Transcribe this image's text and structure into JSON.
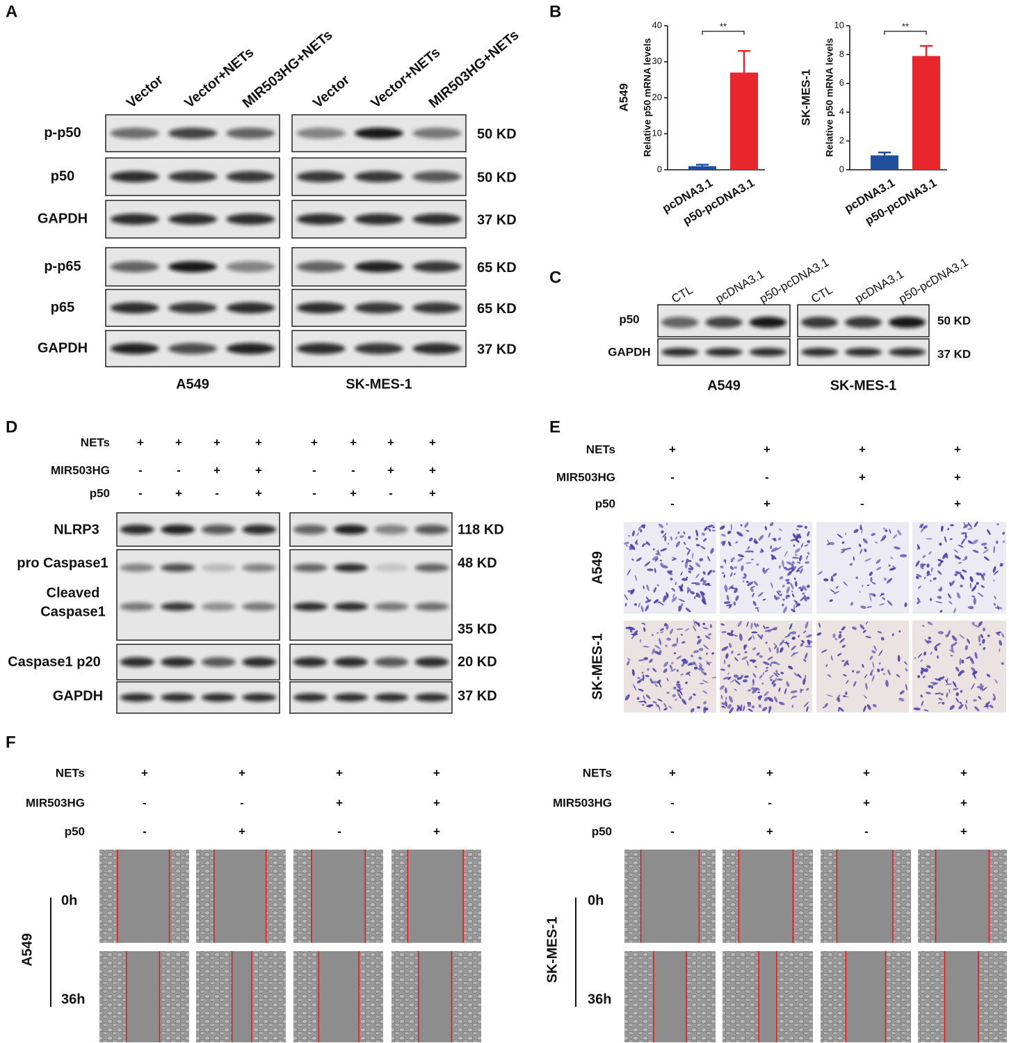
{
  "panel_labels": [
    "A",
    "B",
    "C",
    "D",
    "E",
    "F"
  ],
  "panel_a": {
    "lanes": [
      "Vector",
      "Vector+NETs",
      "MIR503HG+NETs"
    ],
    "rows": [
      {
        "label": "p-p50",
        "size": "50 KD"
      },
      {
        "label": "p50",
        "size": "50 KD"
      },
      {
        "label": "GAPDH",
        "size": "37 KD"
      },
      {
        "label": "p-p65",
        "size": "65 KD"
      },
      {
        "label": "p65",
        "size": "65 KD"
      },
      {
        "label": "GAPDH",
        "size": "37 KD"
      }
    ],
    "cell_lines": [
      "A549",
      "SK-MES-1"
    ]
  },
  "chart_data": [
    {
      "type": "bar",
      "title": "A549",
      "y_label": "Relative p50 mRNA levels",
      "categories": [
        "pcDNA3.1",
        "p50-pcDNA3.1"
      ],
      "values": [
        1,
        27
      ],
      "errors": [
        0.4,
        6
      ],
      "colors": [
        "#1f4e9c",
        "#e8262b"
      ],
      "ylim": [
        0,
        40
      ],
      "yticks": [
        0,
        10,
        20,
        30,
        40
      ],
      "significance": "**"
    },
    {
      "type": "bar",
      "title": "SK-MES-1",
      "y_label": "Relative p50 mRNA levels",
      "categories": [
        "pcDNA3.1",
        "p50-pcDNA3.1"
      ],
      "values": [
        1,
        7.9
      ],
      "errors": [
        0.2,
        0.7
      ],
      "colors": [
        "#1f4e9c",
        "#e8262b"
      ],
      "ylim": [
        0,
        10
      ],
      "yticks": [
        0,
        2,
        4,
        6,
        8,
        10
      ],
      "significance": "**"
    }
  ],
  "panel_c": {
    "lanes": [
      "CTL",
      "pcDNA3.1",
      "p50-pcDNA3.1"
    ],
    "rows": [
      {
        "label": "p50",
        "size": "50 KD"
      },
      {
        "label": "GAPDH",
        "size": "37 KD"
      }
    ],
    "cell_lines": [
      "A549",
      "SK-MES-1"
    ]
  },
  "panel_d": {
    "conditions": [
      {
        "label": "NETs",
        "signs": [
          "+",
          "+",
          "+",
          "+",
          "+",
          "+",
          "+",
          "+"
        ]
      },
      {
        "label": "MIR503HG",
        "signs": [
          "-",
          "-",
          "+",
          "+",
          "-",
          "-",
          "+",
          "+"
        ]
      },
      {
        "label": "p50",
        "signs": [
          "-",
          "+",
          "-",
          "+",
          "-",
          "+",
          "-",
          "+"
        ]
      }
    ],
    "row_labels": [
      "NLRP3",
      "pro Caspase1",
      "Cleaved",
      "Caspase1",
      "Caspase1 p20",
      "GAPDH"
    ],
    "sizes": [
      "118 KD",
      "48 KD",
      "35 KD",
      "20 KD",
      "37 KD"
    ]
  },
  "panel_e": {
    "conditions": [
      {
        "label": "NETs",
        "signs": [
          "+",
          "+",
          "+",
          "+"
        ]
      },
      {
        "label": "MIR503HG",
        "signs": [
          "-",
          "-",
          "+",
          "+"
        ]
      },
      {
        "label": "p50",
        "signs": [
          "-",
          "+",
          "-",
          "+"
        ]
      }
    ],
    "row_labels": [
      "A549",
      "SK-MES-1"
    ]
  },
  "panel_f": {
    "left": {
      "conditions": [
        {
          "label": "NETs",
          "signs": [
            "+",
            "+",
            "+",
            "+"
          ]
        },
        {
          "label": "MIR503HG",
          "signs": [
            "-",
            "-",
            "+",
            "+"
          ]
        },
        {
          "label": "p50",
          "signs": [
            "-",
            "+",
            "-",
            "+"
          ]
        }
      ],
      "time_labels": [
        "0h",
        "36h"
      ],
      "cell_line": "A549"
    },
    "right": {
      "conditions": [
        {
          "label": "NETs",
          "signs": [
            "+",
            "+",
            "+",
            "+"
          ]
        },
        {
          "label": "MIR503HG",
          "signs": [
            "-",
            "-",
            "+",
            "+"
          ]
        },
        {
          "label": "p50",
          "signs": [
            "-",
            "+",
            "-",
            "+"
          ]
        }
      ],
      "time_labels": [
        "0h",
        "36h"
      ],
      "cell_line": "SK-MES-1"
    }
  }
}
